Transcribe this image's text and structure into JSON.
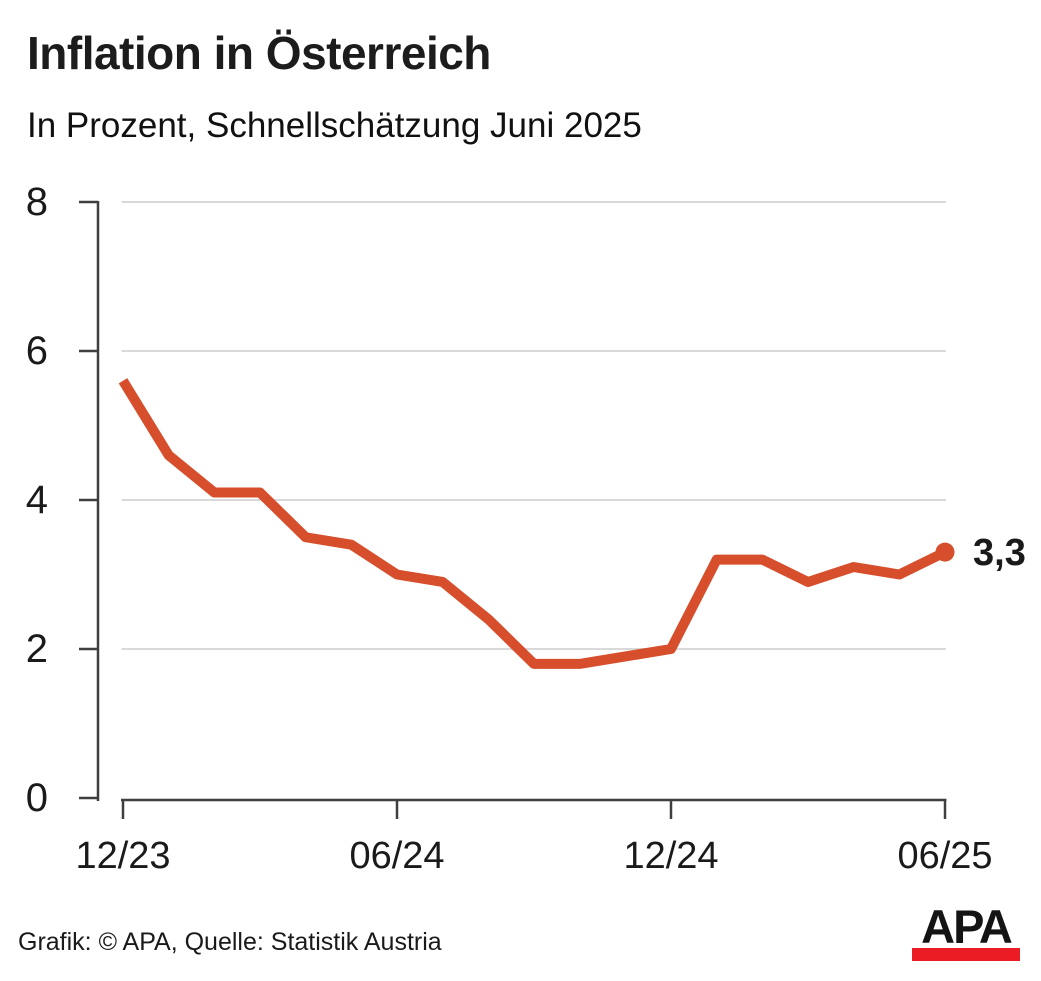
{
  "header": {
    "title": "Inflation in Österreich",
    "subtitle": "In Prozent, Schnellschätzung Juni 2025"
  },
  "chart_data": {
    "type": "line",
    "title": "Inflation in Österreich",
    "subtitle": "In Prozent, Schnellschätzung Juni 2025",
    "unit": "Prozent",
    "x": [
      "12/23",
      "01/24",
      "02/24",
      "03/24",
      "04/24",
      "05/24",
      "06/24",
      "07/24",
      "08/24",
      "09/24",
      "10/24",
      "11/24",
      "12/24",
      "01/25",
      "02/25",
      "03/25",
      "04/25",
      "05/25",
      "06/25"
    ],
    "values": [
      5.6,
      4.6,
      4.1,
      4.1,
      3.5,
      3.4,
      3.0,
      2.9,
      2.4,
      1.8,
      1.8,
      1.9,
      2.0,
      3.2,
      3.2,
      2.9,
      3.1,
      3.0,
      3.3
    ],
    "ylim": [
      0,
      8
    ],
    "yticks": [
      0,
      2,
      4,
      6,
      8
    ],
    "xticks_shown": [
      "12/23",
      "06/24",
      "12/24",
      "06/25"
    ],
    "end_label": "3,3",
    "legend": "none",
    "grid": "horizontal",
    "colors": {
      "line": "#d64e2b",
      "axis": "#3f3f3f",
      "grid": "#d9d9d9",
      "text": "#1a1a1a"
    }
  },
  "footer": {
    "credit": "Grafik: © APA, Quelle: Statistik Austria",
    "logo_text": "APA",
    "logo_bar_color": "#ec1c24"
  }
}
